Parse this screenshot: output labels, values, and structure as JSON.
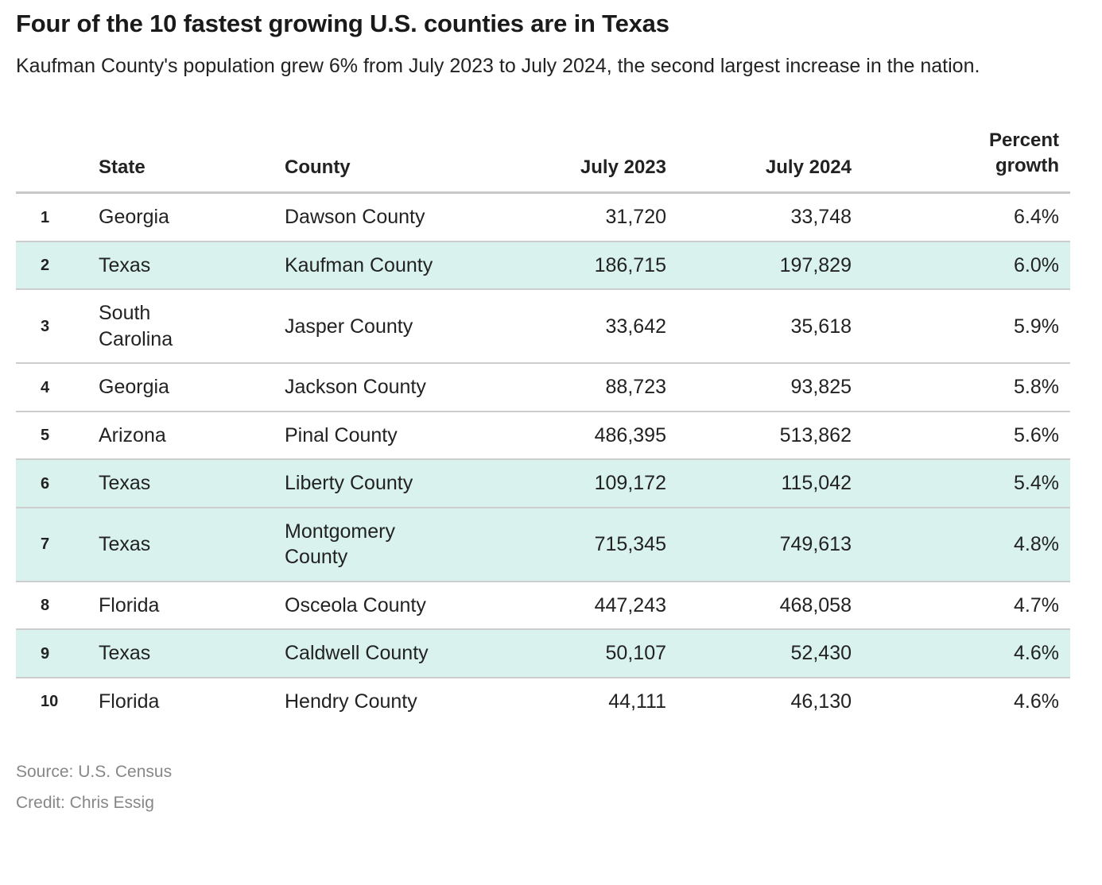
{
  "header": {
    "title": "Four of the 10 fastest growing U.S. counties are in Texas",
    "subtitle": "Kaufman County's population grew 6% from July 2023 to July 2024, the second largest increase in the nation."
  },
  "chart_data": {
    "type": "table",
    "title": "Four of the 10 fastest growing U.S. counties are in Texas",
    "subtitle": "Kaufman County's population grew 6% from July 2023 to July 2024, the second largest increase in the nation.",
    "columns": {
      "rank": "",
      "state": "State",
      "county": "County",
      "july2023": "July 2023",
      "july2024": "July 2024",
      "growth": "Percent growth"
    },
    "rows": [
      {
        "rank": "1",
        "state": "Georgia",
        "county": "Dawson County",
        "july2023": "31,720",
        "july2024": "33,748",
        "growth": "6.4%",
        "highlighted": false
      },
      {
        "rank": "2",
        "state": "Texas",
        "county": "Kaufman County",
        "july2023": "186,715",
        "july2024": "197,829",
        "growth": "6.0%",
        "highlighted": true
      },
      {
        "rank": "3",
        "state": "South Carolina",
        "county": "Jasper County",
        "july2023": "33,642",
        "july2024": "35,618",
        "growth": "5.9%",
        "highlighted": false
      },
      {
        "rank": "4",
        "state": "Georgia",
        "county": "Jackson County",
        "july2023": "88,723",
        "july2024": "93,825",
        "growth": "5.8%",
        "highlighted": false
      },
      {
        "rank": "5",
        "state": "Arizona",
        "county": "Pinal County",
        "july2023": "486,395",
        "july2024": "513,862",
        "growth": "5.6%",
        "highlighted": false
      },
      {
        "rank": "6",
        "state": "Texas",
        "county": "Liberty County",
        "july2023": "109,172",
        "july2024": "115,042",
        "growth": "5.4%",
        "highlighted": true
      },
      {
        "rank": "7",
        "state": "Texas",
        "county": "Montgomery County",
        "july2023": "715,345",
        "july2024": "749,613",
        "growth": "4.8%",
        "highlighted": true
      },
      {
        "rank": "8",
        "state": "Florida",
        "county": "Osceola County",
        "july2023": "447,243",
        "july2024": "468,058",
        "growth": "4.7%",
        "highlighted": false
      },
      {
        "rank": "9",
        "state": "Texas",
        "county": "Caldwell County",
        "july2023": "50,107",
        "july2024": "52,430",
        "growth": "4.6%",
        "highlighted": true
      },
      {
        "rank": "10",
        "state": "Florida",
        "county": "Hendry County",
        "july2023": "44,111",
        "july2024": "46,130",
        "growth": "4.6%",
        "highlighted": false
      }
    ],
    "highlighted_state": "Texas",
    "legend_position": "none",
    "grid": "horizontal-row-dividers"
  },
  "footer": {
    "source": "Source: U.S. Census",
    "credit": "Credit: Chris Essig"
  },
  "colors": {
    "highlight": "#d9f2ee",
    "row_divider": "#cdcdcd",
    "header_rule": "#c8c8c8",
    "text": "#222222",
    "muted_text": "#878787",
    "background": "#ffffff"
  }
}
